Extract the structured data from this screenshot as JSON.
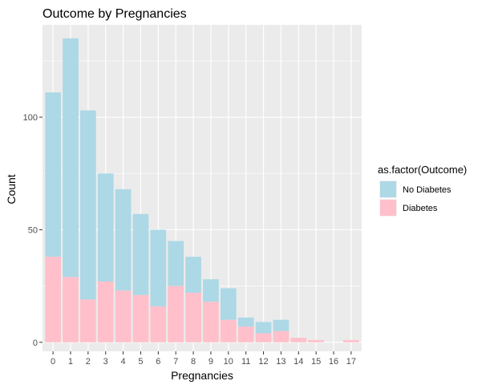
{
  "chart_data": {
    "type": "bar",
    "stacked": true,
    "title": "Outcome by Pregnancies",
    "xlabel": "Pregnancies",
    "ylabel": "Count",
    "categories": [
      "0",
      "1",
      "2",
      "3",
      "4",
      "5",
      "6",
      "7",
      "8",
      "9",
      "10",
      "11",
      "12",
      "13",
      "14",
      "15",
      "16",
      "17"
    ],
    "yticks": [
      0,
      50,
      100
    ],
    "ylim": [
      -4,
      141
    ],
    "grid": true,
    "legend": {
      "title": "as.factor(Outcome)",
      "position": "right"
    },
    "series": [
      {
        "name": "No Diabetes",
        "color": "#add8e6",
        "values": [
          73,
          106,
          84,
          48,
          45,
          36,
          34,
          20,
          16,
          10,
          14,
          4,
          5,
          5,
          0,
          0,
          0,
          0
        ]
      },
      {
        "name": "Diabetes",
        "color": "#ffc0cb",
        "values": [
          38,
          29,
          19,
          27,
          23,
          21,
          16,
          25,
          22,
          18,
          10,
          7,
          4,
          5,
          2,
          1,
          0,
          1
        ]
      }
    ]
  }
}
